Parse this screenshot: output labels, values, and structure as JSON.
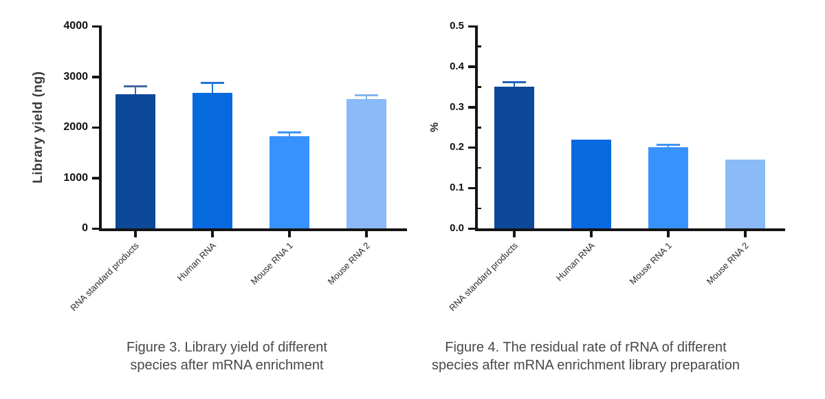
{
  "chart_data": [
    {
      "type": "bar",
      "title": "Figure 3. Library yield of different species after mRNA enrichment",
      "xlabel": "",
      "ylabel": "Library yield (ng)",
      "ylim": [
        0,
        4000
      ],
      "ytick_values": [
        0,
        1000,
        2000,
        3000,
        4000
      ],
      "ytick_labels": [
        "0",
        "1000",
        "2000",
        "3000",
        "4000"
      ],
      "minor_tick_values": [],
      "categories": [
        "RNA standard products",
        "Human RNA",
        "Mouse RNA 1",
        "Mouse RNA 2"
      ],
      "values": [
        2650,
        2680,
        1820,
        2560
      ],
      "errors": [
        160,
        210,
        90,
        85
      ],
      "bar_colors": [
        "#0d4899",
        "#0669dd",
        "#3892fd",
        "#8abaf8"
      ],
      "error_colors": [
        "#46699f",
        "#1f72d6",
        "#3f93f2",
        "#85b4ef"
      ],
      "grid": "off",
      "legend": "none"
    },
    {
      "type": "bar",
      "title": "Figure 4. The residual rate of rRNA of different species after mRNA enrichment library preparation",
      "xlabel": "",
      "ylabel": "%",
      "ylim": [
        0,
        0.5
      ],
      "ytick_values": [
        0,
        0.1,
        0.2,
        0.3,
        0.4,
        0.5
      ],
      "ytick_labels": [
        "0.0",
        "0.1",
        "0.2",
        "0.3",
        "0.4",
        "0.5"
      ],
      "minor_tick_values": [
        0.05,
        0.15,
        0.25,
        0.35,
        0.45
      ],
      "categories": [
        "RNA standard products",
        "Human RNA",
        "Mouse RNA 1",
        "Mouse RNA 2"
      ],
      "values": [
        0.35,
        0.22,
        0.2,
        0.17
      ],
      "errors": [
        0.013,
        0,
        0.008,
        0
      ],
      "bar_colors": [
        "#0d4899",
        "#0669dd",
        "#3892fd",
        "#8abaf8"
      ],
      "error_colors": [
        "#1f62c0",
        "#1f72d6",
        "#3f93f2",
        "#85b4ef"
      ],
      "grid": "off",
      "legend": "none"
    }
  ],
  "captions": [
    {
      "line1": "Figure 3. Library yield of different",
      "line2": "species after mRNA enrichment"
    },
    {
      "line1": "Figure 4. The residual rate of rRNA of different",
      "line2": "species after mRNA enrichment library preparation"
    }
  ]
}
